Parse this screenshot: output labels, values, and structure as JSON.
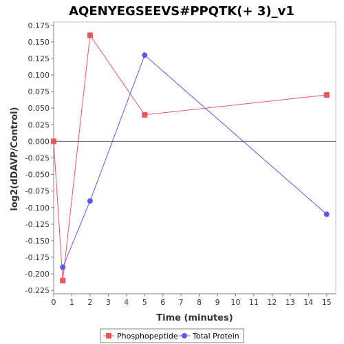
{
  "chart_data": {
    "type": "line",
    "title": "AQENYEGSEEVS#PPQTK(+ 3)_v1",
    "xlabel": "Time (minutes)",
    "ylabel": "log2(dDAVP/Control)",
    "xlim": [
      0,
      15.5
    ],
    "ylim": [
      -0.23,
      0.18
    ],
    "xticks": [
      0,
      1,
      2,
      3,
      4,
      5,
      6,
      7,
      8,
      9,
      10,
      11,
      12,
      13,
      14,
      15
    ],
    "yticks": [
      -0.225,
      -0.2,
      -0.175,
      -0.15,
      -0.125,
      -0.1,
      -0.075,
      -0.05,
      -0.025,
      0.0,
      0.025,
      0.05,
      0.075,
      0.1,
      0.125,
      0.15,
      0.175
    ],
    "ytick_labels": [
      "-0.225",
      "-0.200",
      "-0.175",
      "-0.150",
      "-0.125",
      "-0.100",
      "-0.075",
      "-0.050",
      "-0.025",
      "0.000",
      "0.025",
      "0.050",
      "0.075",
      "0.100",
      "0.125",
      "0.150",
      "0.175"
    ],
    "series": [
      {
        "name": "Phosphopeptide",
        "color": "#e8585a",
        "marker": "square",
        "x": [
          0,
          0.5,
          2,
          5,
          15
        ],
        "y": [
          0.0,
          -0.21,
          0.16,
          0.04,
          0.07
        ]
      },
      {
        "name": "Total Protein",
        "color": "#5a5ae8",
        "marker": "circle",
        "x": [
          0.5,
          2,
          5,
          15
        ],
        "y": [
          -0.19,
          -0.09,
          0.13,
          -0.11
        ]
      }
    ],
    "zero_line": true,
    "grid": false,
    "legend_position": "bottom-center"
  }
}
